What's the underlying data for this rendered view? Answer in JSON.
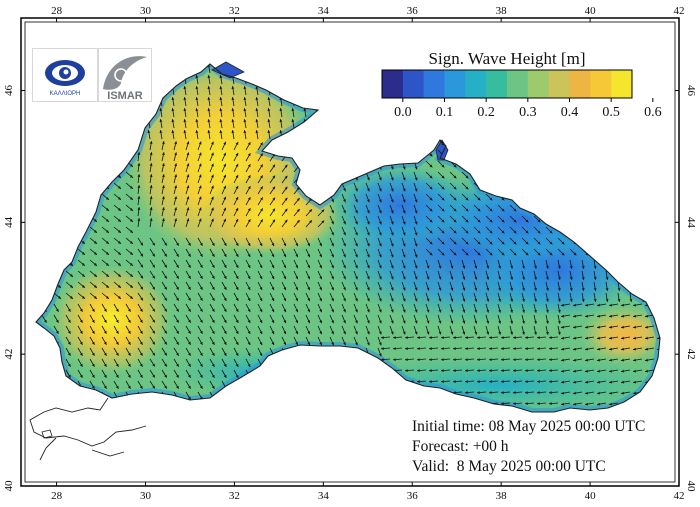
{
  "map": {
    "x_ticks": [
      "28",
      "30",
      "32",
      "34",
      "36",
      "38",
      "40",
      "42"
    ],
    "y_ticks": [
      "40",
      "42",
      "44",
      "46"
    ],
    "region": "Black Sea",
    "lon_range": [
      27.2,
      42
    ],
    "lat_range": [
      40,
      47.1
    ]
  },
  "colorbar": {
    "title": "Sign. Wave Height [m]",
    "labels": [
      "0.0",
      "0.1",
      "0.2",
      "0.3",
      "0.4",
      "0.5",
      "0.6"
    ],
    "colors": [
      "#2b2c8c",
      "#2e55c8",
      "#2f78de",
      "#2c98dc",
      "#26b0c6",
      "#36bda0",
      "#6cc585",
      "#9cca6c",
      "#cbc45a",
      "#edb542",
      "#f6c736",
      "#f5e52c"
    ]
  },
  "forecast": {
    "initial": "Initial time: 08 May 2025 00:00 UTC",
    "lead": "Forecast: +00 h",
    "valid": "Valid:  8 May 2025 00:00 UTC"
  },
  "logos": {
    "left_text": "ΚΑΛΛΙΟΡΗ",
    "right_text": "ISMAR"
  },
  "colors": {
    "land_outline": "#222222",
    "frame": "#000000"
  }
}
